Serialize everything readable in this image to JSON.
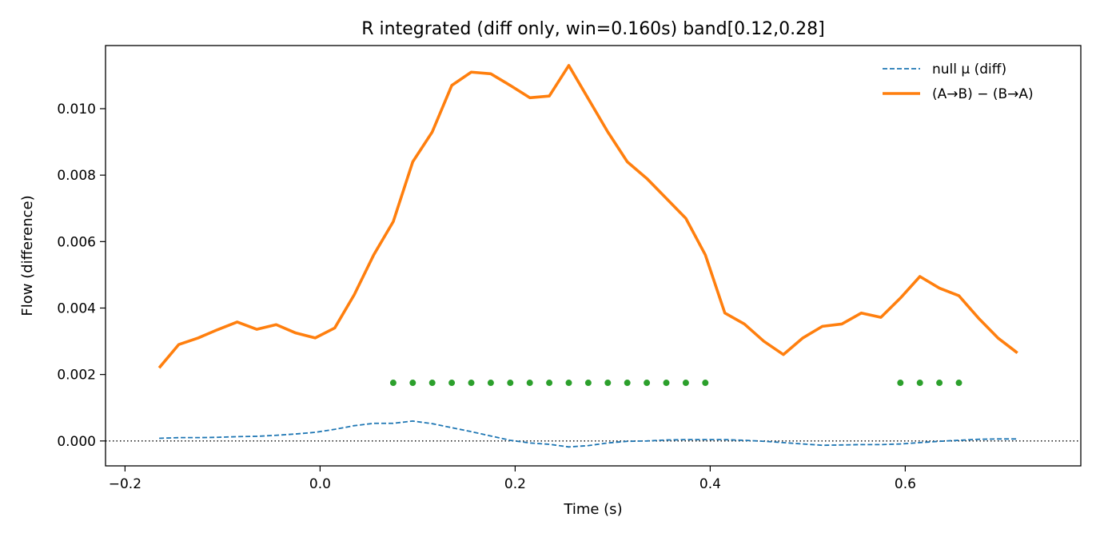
{
  "chart_data": {
    "type": "line",
    "title": "R integrated (diff only, win=0.160s)   band[0.12,0.28]",
    "xlabel": "Time (s)",
    "ylabel": "Flow (difference)",
    "xlim": [
      -0.22,
      0.78
    ],
    "ylim": [
      -0.00075,
      0.0119
    ],
    "x_ticks": [
      -0.2,
      0.0,
      0.2,
      0.4,
      0.6
    ],
    "x_tick_labels": [
      "−0.2",
      "0.0",
      "0.2",
      "0.4",
      "0.6"
    ],
    "y_ticks": [
      0.0,
      0.002,
      0.004,
      0.006,
      0.008,
      0.01
    ],
    "y_tick_labels": [
      "0.000",
      "0.002",
      "0.004",
      "0.006",
      "0.008",
      "0.010"
    ],
    "grid": false,
    "legend_position": "top-right",
    "x": [
      -0.165,
      -0.145,
      -0.125,
      -0.105,
      -0.085,
      -0.065,
      -0.045,
      -0.025,
      -0.005,
      0.015,
      0.035,
      0.055,
      0.075,
      0.095,
      0.115,
      0.135,
      0.155,
      0.175,
      0.195,
      0.215,
      0.235,
      0.255,
      0.275,
      0.295,
      0.315,
      0.335,
      0.355,
      0.375,
      0.395,
      0.415,
      0.435,
      0.455,
      0.475,
      0.495,
      0.515,
      0.535,
      0.555,
      0.575,
      0.595,
      0.615,
      0.635,
      0.655,
      0.675,
      0.695,
      0.715
    ],
    "series": [
      {
        "name": "null μ (diff)",
        "style": "dashed",
        "color": "#1f77b4",
        "values": [
          8e-05,
          0.0001,
          0.0001,
          0.00011,
          0.00013,
          0.00014,
          0.00017,
          0.00021,
          0.00026,
          0.00035,
          0.00046,
          0.00053,
          0.00053,
          0.0006,
          0.00052,
          0.0004,
          0.00028,
          0.00015,
          2e-05,
          -6e-05,
          -0.0001,
          -0.00018,
          -0.00014,
          -6e-05,
          -1e-05,
          0.0,
          3e-05,
          4e-05,
          4e-05,
          4e-05,
          2e-05,
          -1e-05,
          -5e-05,
          -9e-05,
          -0.00013,
          -0.00012,
          -0.00011,
          -0.00011,
          -9e-05,
          -5e-05,
          -1e-05,
          2e-05,
          5e-05,
          6e-05,
          6e-05
        ]
      },
      {
        "name": "(A→B) − (B→A)",
        "style": "solid",
        "color": "#ff7f0e",
        "values": [
          0.0022,
          0.0029,
          0.0031,
          0.00335,
          0.00358,
          0.00336,
          0.0035,
          0.00325,
          0.0031,
          0.0034,
          0.0044,
          0.0056,
          0.0066,
          0.0084,
          0.0093,
          0.0107,
          0.0111,
          0.01105,
          0.0107,
          0.01033,
          0.01038,
          0.0113,
          0.0103,
          0.0093,
          0.0084,
          0.0079,
          0.0073,
          0.0067,
          0.0056,
          0.00385,
          0.00352,
          0.003,
          0.0026,
          0.0031,
          0.00345,
          0.00352,
          0.00385,
          0.00372,
          0.0043,
          0.00495,
          0.0046,
          0.00437,
          0.0037,
          0.0031,
          0.00265
        ]
      }
    ],
    "significance_markers": {
      "color": "#2ca02c",
      "y": 0.00175,
      "x": [
        0.075,
        0.095,
        0.115,
        0.135,
        0.155,
        0.175,
        0.195,
        0.215,
        0.235,
        0.255,
        0.275,
        0.295,
        0.315,
        0.335,
        0.355,
        0.375,
        0.395,
        0.595,
        0.615,
        0.635,
        0.655
      ]
    },
    "reference_line": {
      "y": 0.0,
      "style": "dotted",
      "color": "#000000"
    }
  }
}
